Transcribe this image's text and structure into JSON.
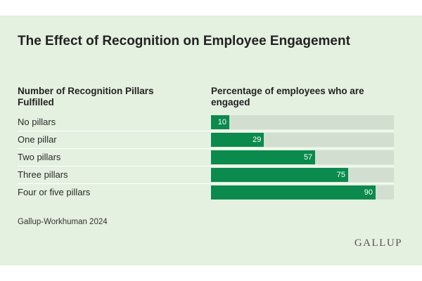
{
  "title": "The Effect of Recognition on Employee Engagement",
  "left_header": "Number of Recognition Pillars Fulfilled",
  "right_header": "Percentage of employees who are engaged",
  "source": "Gallup-Workhuman 2024",
  "logo_text": "GALLUP",
  "colors": {
    "bar": "#0a8a4c",
    "track": "#d2dfd0",
    "background": "#e4f0e0"
  },
  "chart_data": {
    "type": "bar",
    "orientation": "horizontal",
    "categories": [
      "No pillars",
      "One pillar",
      "Two pillars",
      "Three pillars",
      "Four or five pillars"
    ],
    "values": [
      10,
      29,
      57,
      75,
      90
    ],
    "xlim": [
      0,
      100
    ],
    "grid": false
  }
}
